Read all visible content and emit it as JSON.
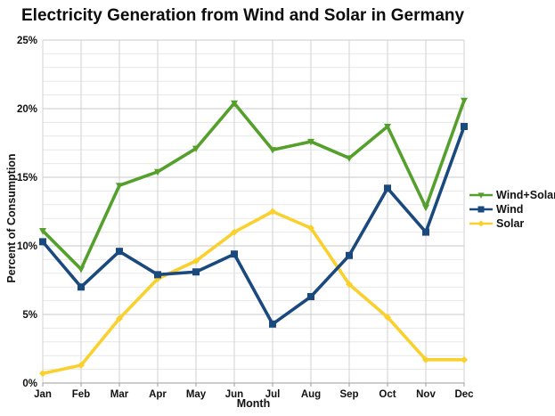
{
  "chart_data": {
    "type": "line",
    "title": "Electricity Generation from Wind and Solar in Germany",
    "xlabel": "Month",
    "ylabel": "Percent of Consumption",
    "categories": [
      "Jan",
      "Feb",
      "Mar",
      "Apr",
      "May",
      "Jun",
      "Jul",
      "Aug",
      "Sep",
      "Oct",
      "Nov",
      "Dec"
    ],
    "y_ticks": [
      "0%",
      "5%",
      "10%",
      "15%",
      "20%",
      "25%"
    ],
    "ylim": [
      0,
      25
    ],
    "y_major_step": 5,
    "y_minor_step": 1,
    "grid": "on",
    "legend_position": "right",
    "series": [
      {
        "name": "Wind+Solar",
        "color": "#55A02C",
        "marker": "triangle-down",
        "values": [
          11.1,
          8.3,
          14.4,
          15.4,
          17.1,
          20.4,
          17.0,
          17.6,
          16.4,
          18.7,
          12.8,
          20.6
        ]
      },
      {
        "name": "Wind",
        "color": "#1A497E",
        "marker": "square",
        "values": [
          10.3,
          7.0,
          9.6,
          7.9,
          8.1,
          9.4,
          4.3,
          6.3,
          9.3,
          14.2,
          11.0,
          18.7
        ]
      },
      {
        "name": "Solar",
        "color": "#FAD02D",
        "marker": "diamond",
        "values": [
          0.7,
          1.3,
          4.7,
          7.6,
          8.9,
          11.0,
          12.5,
          11.3,
          7.2,
          4.8,
          1.7,
          1.7
        ]
      }
    ],
    "draw_order": [
      2,
      0,
      1
    ],
    "colors": {
      "grid_minor": "#e7e7e7",
      "grid_major": "#c9c9c9",
      "grid_vertical": "#d2d2d2",
      "axis_line": "#9b9b9b",
      "text": "#111111",
      "background": "#ffffff"
    }
  }
}
